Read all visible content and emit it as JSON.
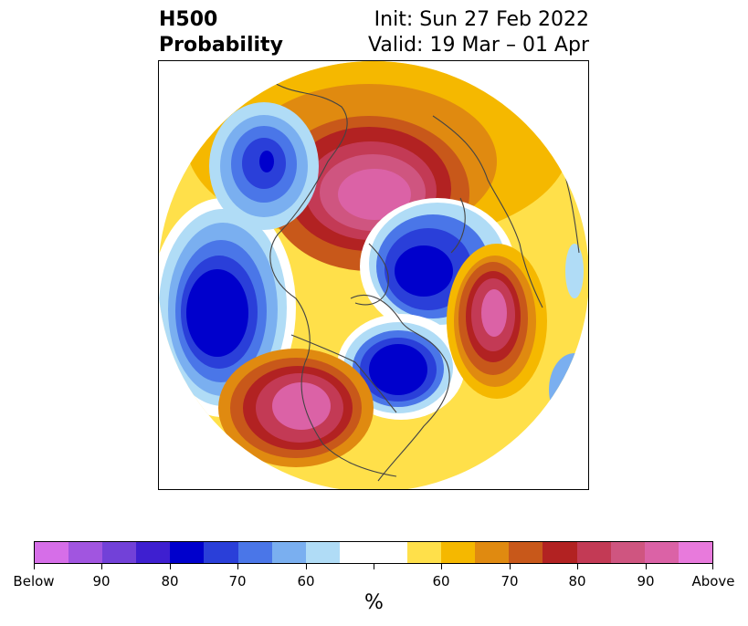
{
  "header": {
    "title_line1": "H500",
    "title_line2": "Probability",
    "init": "Init: Sun 27 Feb 2022",
    "valid": "Valid: 19 Mar – 01 Apr"
  },
  "colorbar": {
    "colors": [
      "#d66ee8",
      "#a155e0",
      "#7241d8",
      "#3e1fd0",
      "#0000cc",
      "#2a3fd9",
      "#4a76e8",
      "#7aaff0",
      "#b0dcf6",
      "#ffffff",
      "#ffffff",
      "#ffe04a",
      "#f5b800",
      "#e08a10",
      "#c8581a",
      "#b22222",
      "#c33a55",
      "#cf5580",
      "#db62a6",
      "#e87adc"
    ],
    "tick_labels": [
      "Below",
      "90",
      "80",
      "70",
      "60",
      "",
      "60",
      "70",
      "80",
      "90",
      "Above"
    ],
    "unit": "%"
  },
  "legend_colors": {
    "below_strong": "#0000cc",
    "above_strong": "#b22222",
    "above_max": "#db62a6"
  }
}
